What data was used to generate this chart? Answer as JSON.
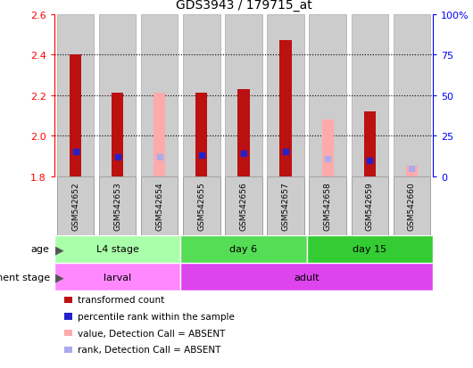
{
  "title": "GDS3943 / 179715_at",
  "samples": [
    "GSM542652",
    "GSM542653",
    "GSM542654",
    "GSM542655",
    "GSM542656",
    "GSM542657",
    "GSM542658",
    "GSM542659",
    "GSM542660"
  ],
  "transformed_count": [
    2.4,
    2.21,
    null,
    2.21,
    2.23,
    2.47,
    null,
    2.12,
    null
  ],
  "absent_value": [
    null,
    null,
    2.21,
    null,
    null,
    null,
    2.08,
    null,
    1.85
  ],
  "percentile_rank_pct": [
    15,
    12,
    null,
    13,
    14,
    15,
    null,
    10,
    null
  ],
  "absent_rank_pct": [
    null,
    null,
    12,
    null,
    null,
    null,
    11,
    null,
    5
  ],
  "bar_base": 1.8,
  "ylim_left": [
    1.8,
    2.6
  ],
  "ylim_right": [
    0,
    100
  ],
  "yticks_left": [
    1.8,
    2.0,
    2.2,
    2.4,
    2.6
  ],
  "yticks_right": [
    0,
    25,
    50,
    75,
    100
  ],
  "color_red": "#bb1111",
  "color_pink": "#ffaaaa",
  "color_blue": "#2222cc",
  "color_lightblue": "#aaaaee",
  "color_bar_bg": "#cccccc",
  "age_groups": [
    {
      "label": "L4 stage",
      "start": 0,
      "end": 3,
      "color": "#aaffaa"
    },
    {
      "label": "day 6",
      "start": 3,
      "end": 6,
      "color": "#55dd55"
    },
    {
      "label": "day 15",
      "start": 6,
      "end": 9,
      "color": "#33cc33"
    }
  ],
  "dev_groups": [
    {
      "label": "larval",
      "start": 0,
      "end": 3,
      "color": "#ff88ff"
    },
    {
      "label": "adult",
      "start": 3,
      "end": 9,
      "color": "#dd44ee"
    }
  ],
  "legend_items": [
    {
      "label": "transformed count",
      "color": "#bb1111"
    },
    {
      "label": "percentile rank within the sample",
      "color": "#2222cc"
    },
    {
      "label": "value, Detection Call = ABSENT",
      "color": "#ffaaaa"
    },
    {
      "label": "rank, Detection Call = ABSENT",
      "color": "#aaaaee"
    }
  ],
  "gridline_y": [
    2.0,
    2.2,
    2.4
  ]
}
